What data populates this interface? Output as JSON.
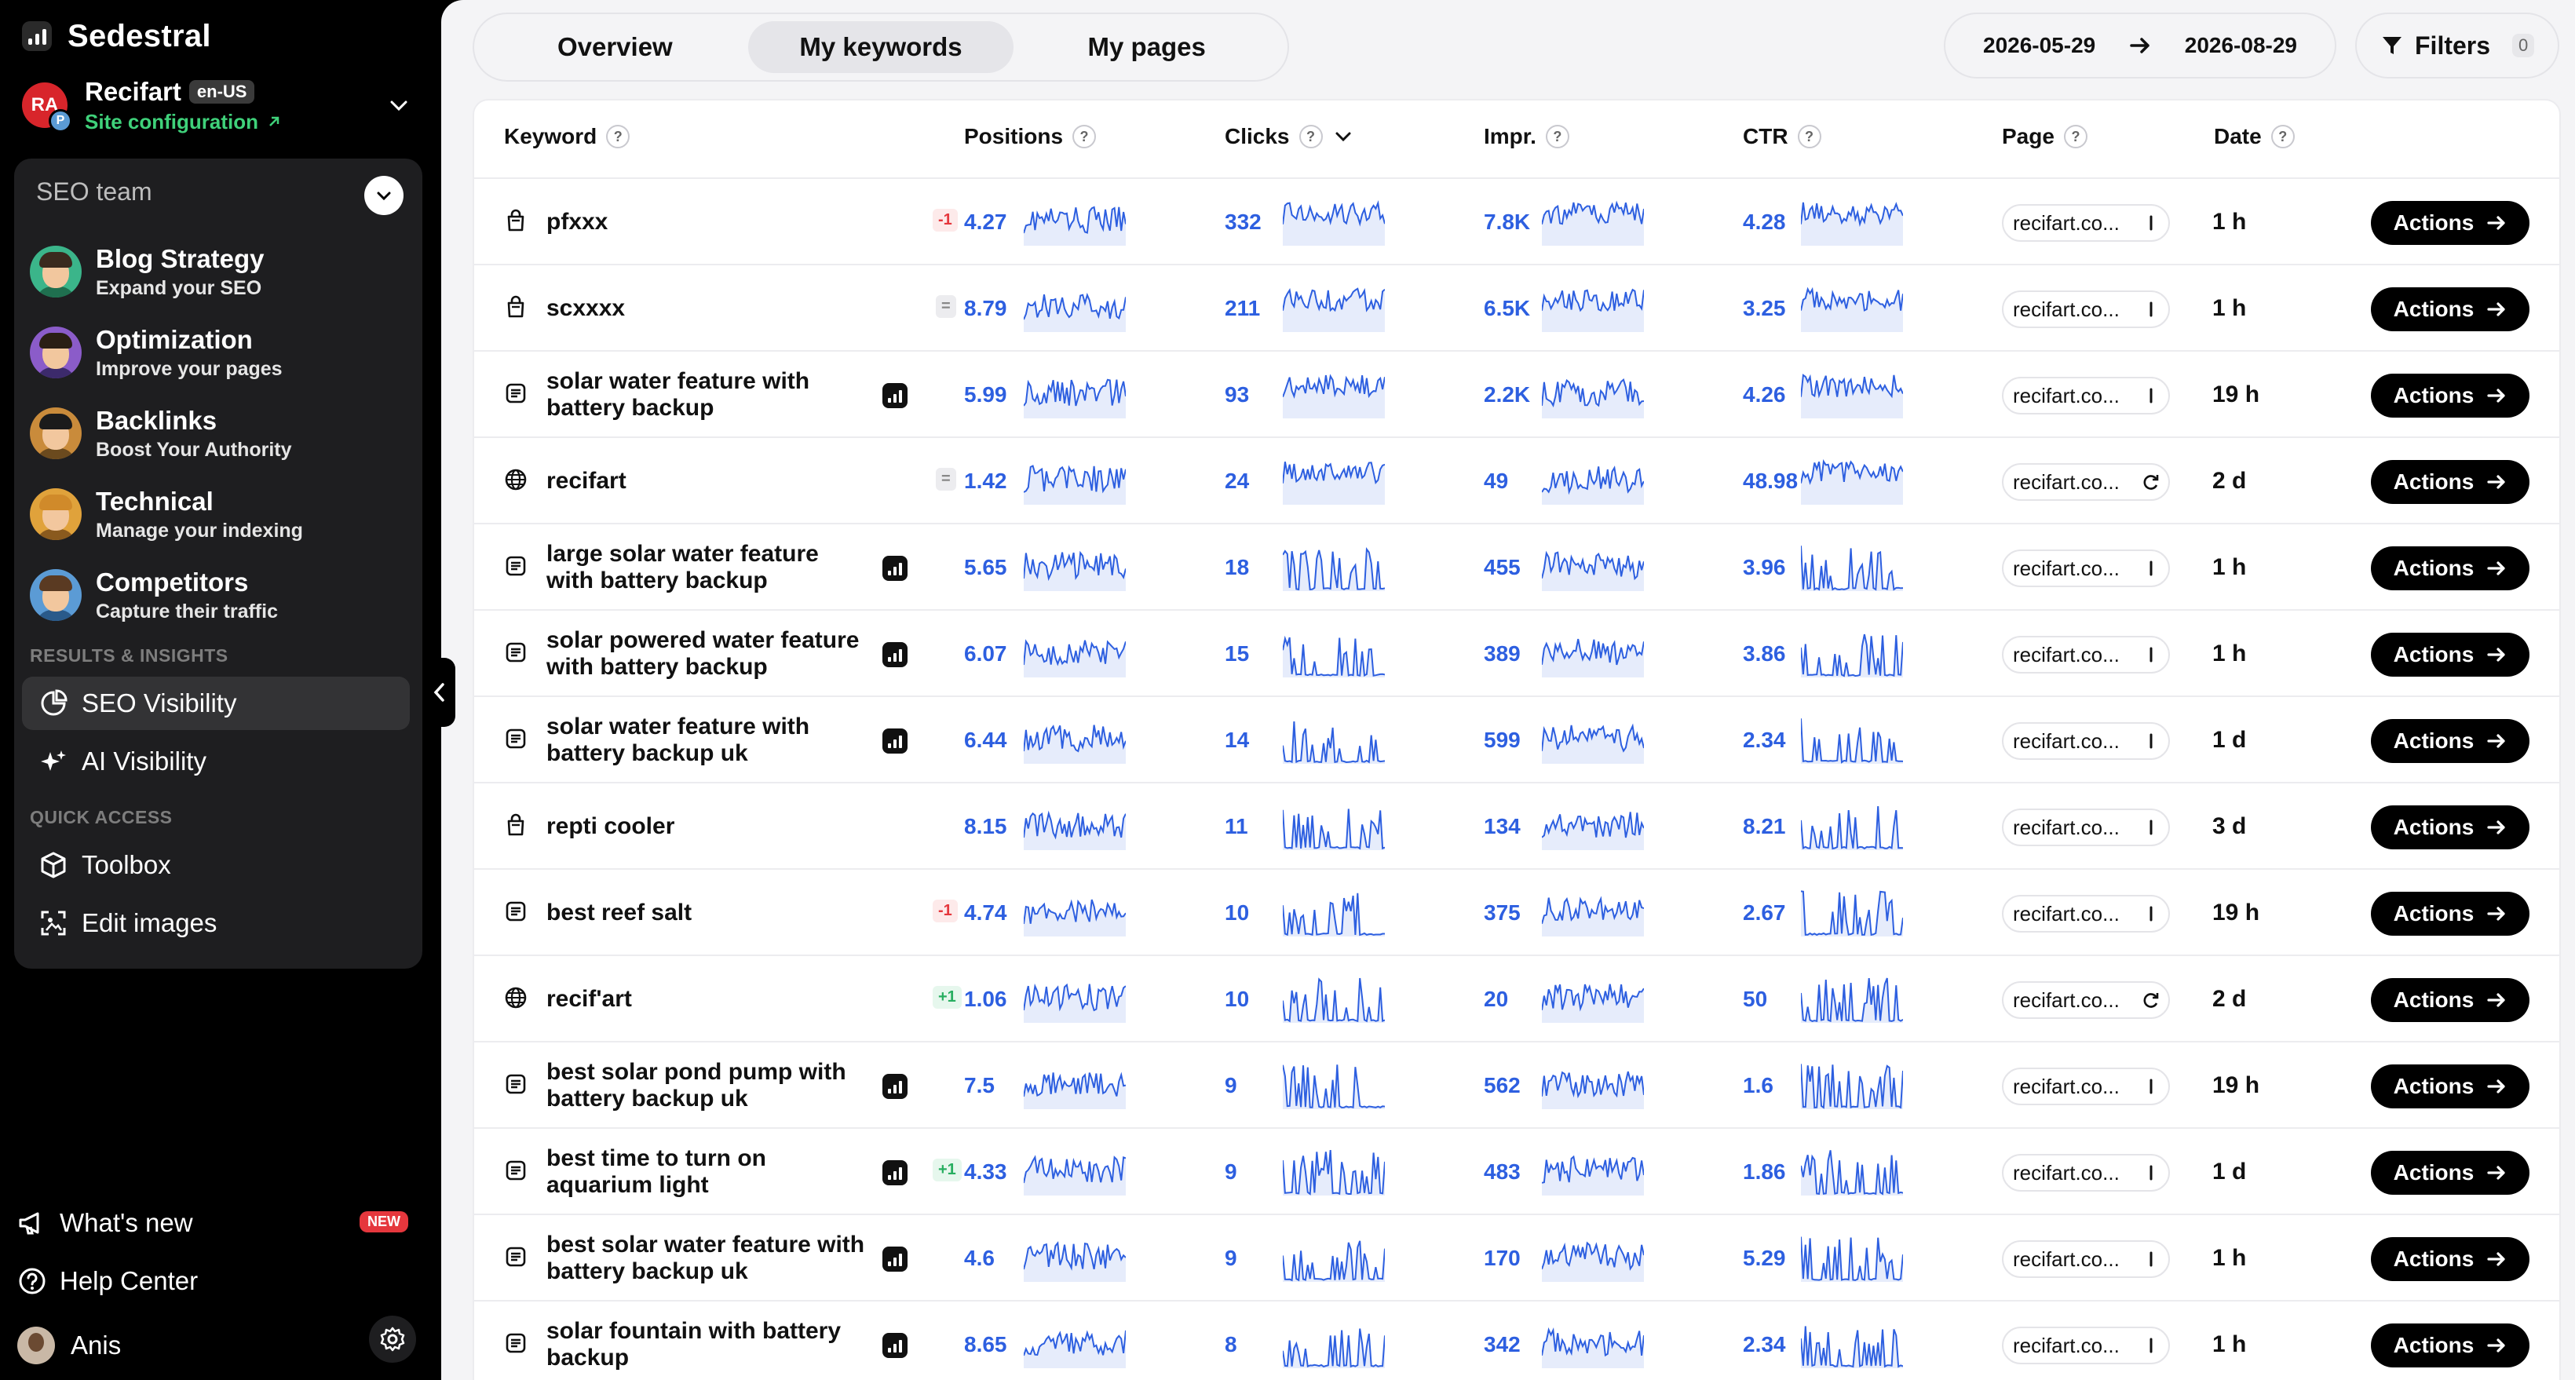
{
  "brand": {
    "name": "Sedestral"
  },
  "site": {
    "avatar_text": "RA",
    "avatar_sub": "P",
    "name": "Recifart",
    "locale": "en-US",
    "config_label": "Site configuration"
  },
  "team": {
    "title": "SEO team",
    "agents": [
      {
        "name": "Blog Strategy",
        "desc": "Expand your SEO",
        "bg": "#3bb58a",
        "hair": "#3a2a1e",
        "body": "#1f6f4f"
      },
      {
        "name": "Optimization",
        "desc": "Improve your pages",
        "bg": "#8b5cc9",
        "hair": "#2a1e14",
        "body": "#3c2a6b"
      },
      {
        "name": "Backlinks",
        "desc": "Boost Your Authority",
        "bg": "#c98b3b",
        "hair": "#1b1b1b",
        "body": "#6b4a1e"
      },
      {
        "name": "Technical",
        "desc": "Manage your indexing",
        "bg": "#e0a23b",
        "hair": "#d08a2a",
        "body": "#8a5a1e"
      },
      {
        "name": "Competitors",
        "desc": "Capture their traffic",
        "bg": "#5b9bd5",
        "hair": "#5a3a22",
        "body": "#2a5a8a"
      }
    ]
  },
  "sections": {
    "results": "RESULTS & INSIGHTS",
    "quick": "QUICK ACCESS"
  },
  "nav": {
    "seo_visibility": "SEO Visibility",
    "ai_visibility": "AI Visibility",
    "toolbox": "Toolbox",
    "edit_images": "Edit images"
  },
  "bottom": {
    "whats_new": "What's new",
    "new_badge": "NEW",
    "help": "Help Center",
    "user": "Anis"
  },
  "tabs": [
    "Overview",
    "My keywords",
    "My pages"
  ],
  "date_range": {
    "start": "2026-05-29",
    "end": "2026-08-29"
  },
  "filters": {
    "label": "Filters",
    "count": "0"
  },
  "columns": {
    "keyword": "Keyword",
    "positions": "Positions",
    "clicks": "Clicks",
    "impr": "Impr.",
    "ctr": "CTR",
    "page": "Page",
    "date": "Date"
  },
  "help_glyph": "?",
  "action_label": "Actions",
  "rows": [
    {
      "icon": "bag",
      "keyword": "pfxxx",
      "badge": false,
      "delta": "-1",
      "delta_type": "neg",
      "position": "4.27",
      "clicks": "332",
      "impr": "7.8K",
      "ctr": "4.28",
      "page": "recifart.co...",
      "page_icon": "bar",
      "date": "1 h"
    },
    {
      "icon": "bag",
      "keyword": "scxxxx",
      "badge": false,
      "delta": "=",
      "delta_type": "eq",
      "position": "8.79",
      "clicks": "211",
      "impr": "6.5K",
      "ctr": "3.25",
      "page": "recifart.co...",
      "page_icon": "bar",
      "date": "1 h"
    },
    {
      "icon": "doc",
      "keyword": "solar water feature with battery backup",
      "badge": true,
      "delta": "",
      "delta_type": "",
      "position": "5.99",
      "clicks": "93",
      "impr": "2.2K",
      "ctr": "4.26",
      "page": "recifart.co...",
      "page_icon": "bar",
      "date": "19 h"
    },
    {
      "icon": "globe",
      "keyword": "recifart",
      "badge": false,
      "delta": "=",
      "delta_type": "eq",
      "position": "1.42",
      "clicks": "24",
      "impr": "49",
      "ctr": "48.98",
      "page": "recifart.co...",
      "page_icon": "refresh",
      "date": "2 d"
    },
    {
      "icon": "doc",
      "keyword": "large solar water feature with battery backup",
      "badge": true,
      "delta": "",
      "delta_type": "",
      "position": "5.65",
      "clicks": "18",
      "impr": "455",
      "ctr": "3.96",
      "page": "recifart.co...",
      "page_icon": "bar",
      "date": "1 h"
    },
    {
      "icon": "doc",
      "keyword": "solar powered water feature with battery backup",
      "badge": true,
      "delta": "",
      "delta_type": "",
      "position": "6.07",
      "clicks": "15",
      "impr": "389",
      "ctr": "3.86",
      "page": "recifart.co...",
      "page_icon": "bar",
      "date": "1 h"
    },
    {
      "icon": "doc",
      "keyword": "solar water feature with battery backup uk",
      "badge": true,
      "delta": "",
      "delta_type": "",
      "position": "6.44",
      "clicks": "14",
      "impr": "599",
      "ctr": "2.34",
      "page": "recifart.co...",
      "page_icon": "bar",
      "date": "1 d"
    },
    {
      "icon": "bag",
      "keyword": "repti cooler",
      "badge": false,
      "delta": "",
      "delta_type": "",
      "position": "8.15",
      "clicks": "11",
      "impr": "134",
      "ctr": "8.21",
      "page": "recifart.co...",
      "page_icon": "bar",
      "date": "3 d"
    },
    {
      "icon": "doc",
      "keyword": "best reef salt",
      "badge": false,
      "delta": "-1",
      "delta_type": "neg",
      "position": "4.74",
      "clicks": "10",
      "impr": "375",
      "ctr": "2.67",
      "page": "recifart.co...",
      "page_icon": "bar",
      "date": "19 h"
    },
    {
      "icon": "globe",
      "keyword": "recif'art",
      "badge": false,
      "delta": "+1",
      "delta_type": "pos",
      "position": "1.06",
      "clicks": "10",
      "impr": "20",
      "ctr": "50",
      "page": "recifart.co...",
      "page_icon": "refresh",
      "date": "2 d"
    },
    {
      "icon": "doc",
      "keyword": "best solar pond pump with battery backup uk",
      "badge": true,
      "delta": "",
      "delta_type": "",
      "position": "7.5",
      "clicks": "9",
      "impr": "562",
      "ctr": "1.6",
      "page": "recifart.co...",
      "page_icon": "bar",
      "date": "19 h"
    },
    {
      "icon": "doc",
      "keyword": "best time to turn on aquarium light",
      "badge": true,
      "delta": "+1",
      "delta_type": "pos",
      "position": "4.33",
      "clicks": "9",
      "impr": "483",
      "ctr": "1.86",
      "page": "recifart.co...",
      "page_icon": "bar",
      "date": "1 d"
    },
    {
      "icon": "doc",
      "keyword": "best solar water feature with battery backup uk",
      "badge": true,
      "delta": "",
      "delta_type": "",
      "position": "4.6",
      "clicks": "9",
      "impr": "170",
      "ctr": "5.29",
      "page": "recifart.co...",
      "page_icon": "bar",
      "date": "1 h"
    },
    {
      "icon": "doc",
      "keyword": "solar fountain with battery backup",
      "badge": true,
      "delta": "",
      "delta_type": "",
      "position": "8.65",
      "clicks": "8",
      "impr": "342",
      "ctr": "2.34",
      "page": "recifart.co...",
      "page_icon": "bar",
      "date": "1 h"
    }
  ],
  "colors": {
    "accent": "#2d5fe0",
    "spark_fill": "#e6ecfb",
    "negative": "#e5373d",
    "positive": "#27ae60",
    "success": "#3fd17a"
  }
}
